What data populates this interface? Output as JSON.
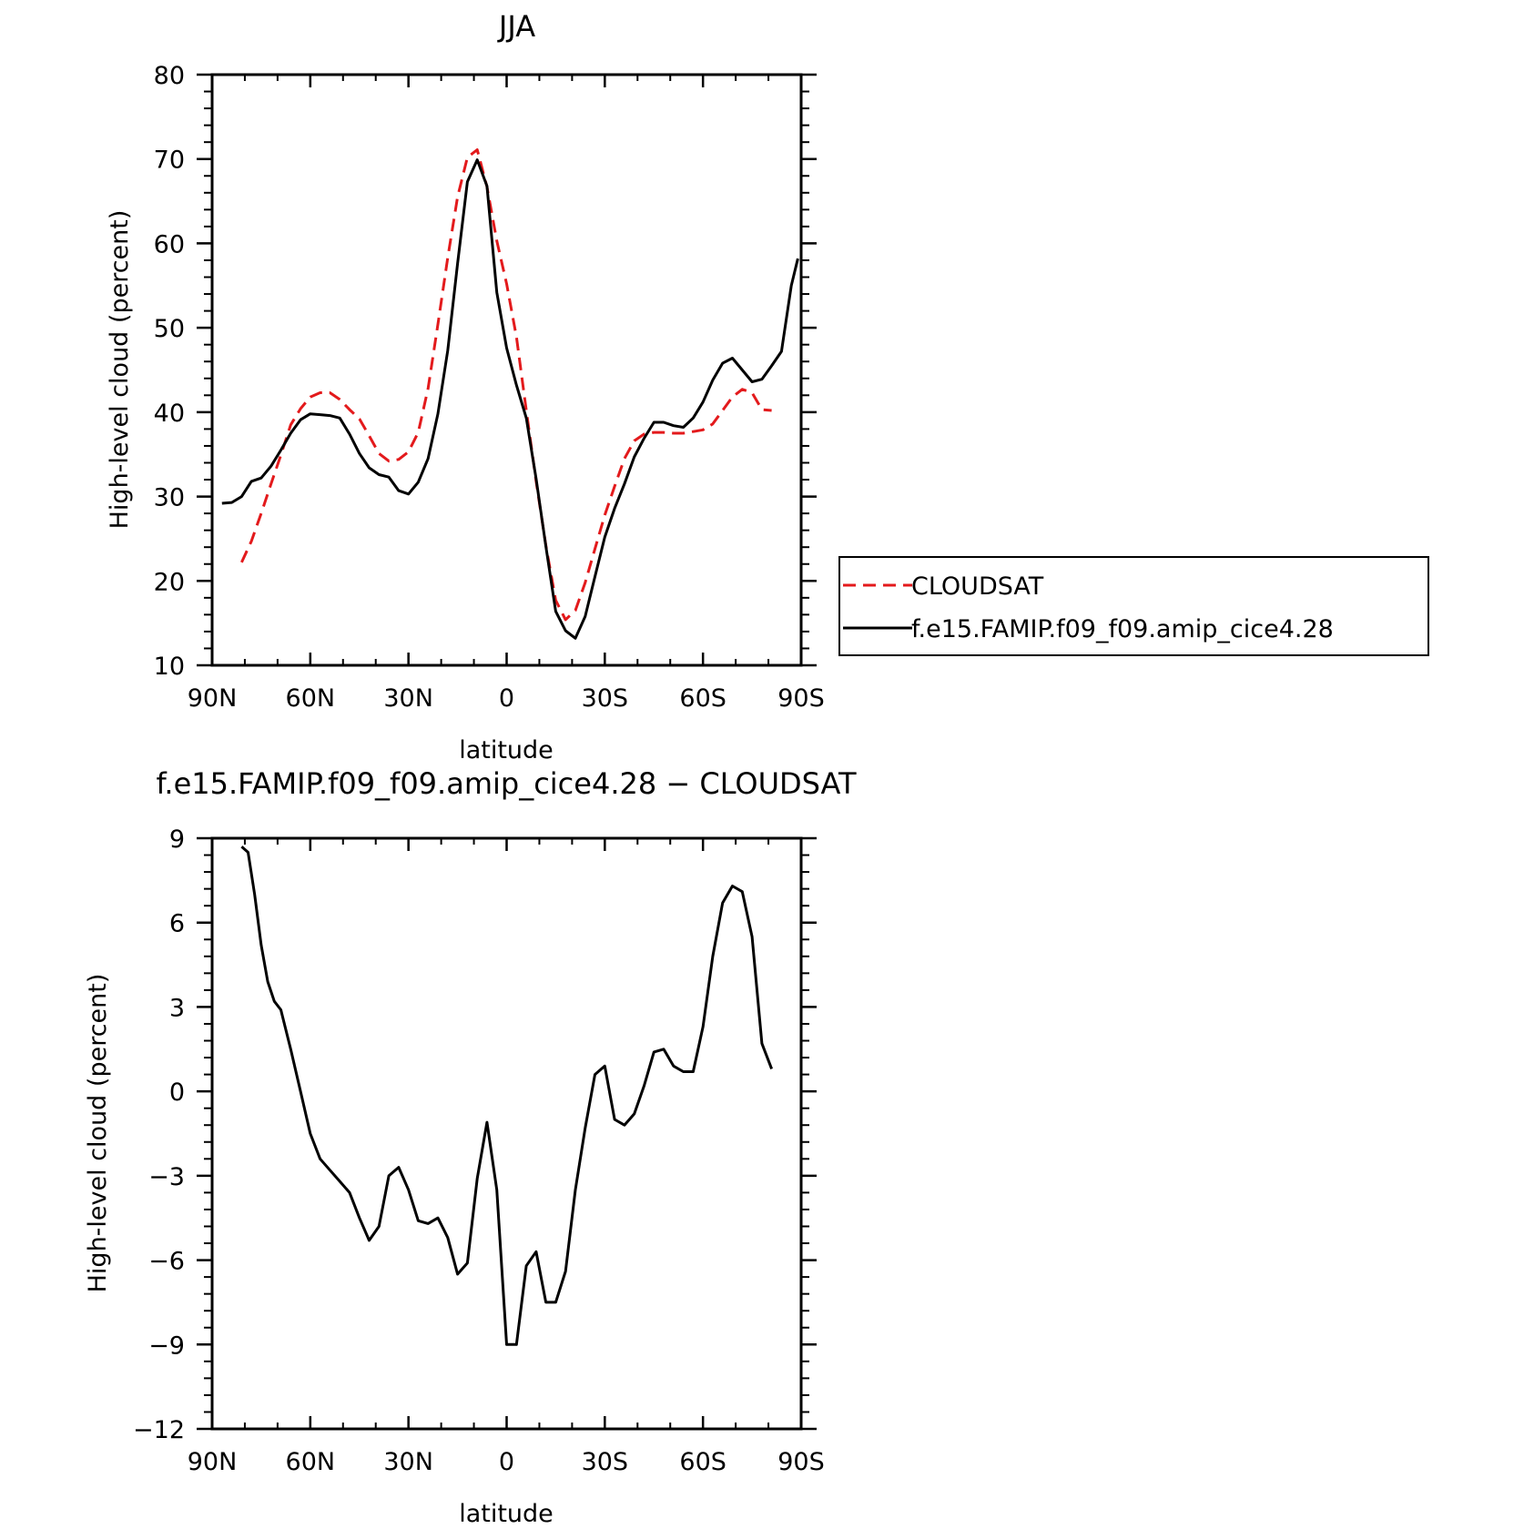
{
  "colors": {
    "model": "#000000",
    "obs": "#e31a1c",
    "axis": "#000000",
    "background": "#ffffff"
  },
  "chart_data": [
    {
      "type": "line",
      "title": "JJA",
      "xlabel": "latitude",
      "ylabel": "High-level cloud (percent)",
      "xlim": [
        90,
        -90
      ],
      "ylim": [
        10,
        80
      ],
      "xticks": [
        90,
        60,
        30,
        0,
        -30,
        -60,
        -90
      ],
      "xtick_labels": [
        "90N",
        "60N",
        "30N",
        "0",
        "30S",
        "60S",
        "90S"
      ],
      "yticks": [
        10,
        20,
        30,
        40,
        50,
        60,
        70,
        80
      ],
      "ytick_labels": [
        "10",
        "20",
        "30",
        "40",
        "50",
        "60",
        "70",
        "80"
      ],
      "legend": "right, outside plot",
      "grid": false,
      "series": [
        {
          "name": "CLOUDSAT",
          "style": "dashed",
          "color": "#e31a1c",
          "x": [
            81,
            78,
            75,
            72,
            69,
            66,
            63,
            60,
            57,
            54,
            51,
            48,
            45,
            42,
            39,
            36,
            33,
            30,
            27,
            24,
            21,
            18,
            15,
            12,
            9,
            6,
            3,
            0,
            -3,
            -6,
            -9,
            -12,
            -15,
            -18,
            -21,
            -24,
            -27,
            -30,
            -33,
            -36,
            -39,
            -42,
            -45,
            -48,
            -51,
            -54,
            -57,
            -60,
            -63,
            -66,
            -69,
            -72,
            -75,
            -78,
            -81
          ],
          "y": [
            22.2,
            24.7,
            28.0,
            31.5,
            34.9,
            38.5,
            40.4,
            41.8,
            42.3,
            42.3,
            41.5,
            40.3,
            39.2,
            37.2,
            35.1,
            34.2,
            34.4,
            35.3,
            37.6,
            42.8,
            50.4,
            58.3,
            65.5,
            70.2,
            71.1,
            66.7,
            60.3,
            55.2,
            48.9,
            40.2,
            31.8,
            24.2,
            17.7,
            15.4,
            16.5,
            19.8,
            23.8,
            27.8,
            31.2,
            34.5,
            36.6,
            37.4,
            37.6,
            37.6,
            37.5,
            37.5,
            37.7,
            37.9,
            38.6,
            40.2,
            41.8,
            42.7,
            42.3,
            40.3,
            40.2
          ]
        },
        {
          "name": "f.e15.FAMIP.f09_f09.amip_cice4.28",
          "style": "solid",
          "color": "#000000",
          "x": [
            87,
            84,
            81,
            78,
            75,
            72,
            69,
            66,
            63,
            60,
            57,
            54,
            51,
            48,
            45,
            42,
            39,
            36,
            33,
            30,
            27,
            24,
            21,
            18,
            15,
            12,
            9,
            6,
            3,
            0,
            -3,
            -6,
            -9,
            -12,
            -15,
            -18,
            -21,
            -24,
            -27,
            -30,
            -33,
            -36,
            -39,
            -42,
            -45,
            -48,
            -51,
            -54,
            -57,
            -60,
            -63,
            -66,
            -69,
            -72,
            -75,
            -78,
            -81,
            -84,
            -87,
            -89
          ],
          "y": [
            29.2,
            29.3,
            30.0,
            31.8,
            32.2,
            33.6,
            35.5,
            37.5,
            39.1,
            39.8,
            39.7,
            39.6,
            39.3,
            37.4,
            35.1,
            33.4,
            32.6,
            32.3,
            30.7,
            30.3,
            31.7,
            34.5,
            39.8,
            47.3,
            57.6,
            67.3,
            69.9,
            66.8,
            54.2,
            47.6,
            43.2,
            39.3,
            32.1,
            24.1,
            16.4,
            14.1,
            13.2,
            15.8,
            20.5,
            25.2,
            28.6,
            31.5,
            34.7,
            36.9,
            38.8,
            38.8,
            38.4,
            38.2,
            39.3,
            41.2,
            43.8,
            45.8,
            46.4,
            45.0,
            43.6,
            43.9,
            45.5,
            47.2,
            55.0,
            58.2
          ]
        }
      ]
    },
    {
      "type": "line",
      "title": "f.e15.FAMIP.f09_f09.amip_cice4.28 − CLOUDSAT",
      "xlabel": "latitude",
      "ylabel": "High-level cloud (percent)",
      "xlim": [
        90,
        -90
      ],
      "ylim": [
        -12,
        9
      ],
      "xticks": [
        90,
        60,
        30,
        0,
        -30,
        -60,
        -90
      ],
      "xtick_labels": [
        "90N",
        "60N",
        "30N",
        "0",
        "30S",
        "60S",
        "90S"
      ],
      "yticks": [
        -12,
        -9,
        -6,
        -3,
        0,
        3,
        6,
        9
      ],
      "ytick_labels": [
        "−12",
        "−9",
        "−6",
        "−3",
        "0",
        "3",
        "6",
        "9"
      ],
      "grid": false,
      "series": [
        {
          "style": "solid",
          "color": "#000000",
          "x": [
            81,
            79,
            77,
            75,
            73,
            71,
            69,
            66,
            63,
            60,
            57,
            54,
            51,
            48,
            45,
            42,
            39,
            36,
            33,
            30,
            27,
            24,
            21,
            18,
            15,
            12,
            9,
            6,
            3,
            0,
            -3,
            -6,
            -9,
            -12,
            -15,
            -18,
            -21,
            -24,
            -27,
            -30,
            -33,
            -36,
            -39,
            -42,
            -45,
            -48,
            -51,
            -54,
            -57,
            -60,
            -63,
            -66,
            -69,
            -72,
            -75,
            -78,
            -81
          ],
          "y": [
            8.7,
            8.5,
            7.0,
            5.2,
            3.9,
            3.2,
            2.9,
            1.5,
            0.0,
            -1.5,
            -2.4,
            -2.8,
            -3.2,
            -3.6,
            -4.5,
            -5.3,
            -4.8,
            -3.0,
            -2.7,
            -3.5,
            -4.6,
            -4.7,
            -4.5,
            -5.2,
            -6.5,
            -6.1,
            -3.1,
            -1.1,
            -3.5,
            -9.0,
            -9.0,
            -6.2,
            -5.7,
            -7.5,
            -7.5,
            -6.4,
            -3.5,
            -1.3,
            0.6,
            0.9,
            -1.0,
            -1.2,
            -0.8,
            0.2,
            1.4,
            1.5,
            0.9,
            0.7,
            0.7,
            2.3,
            4.8,
            6.7,
            7.3,
            7.1,
            5.5,
            1.7,
            0.8
          ]
        }
      ]
    }
  ]
}
